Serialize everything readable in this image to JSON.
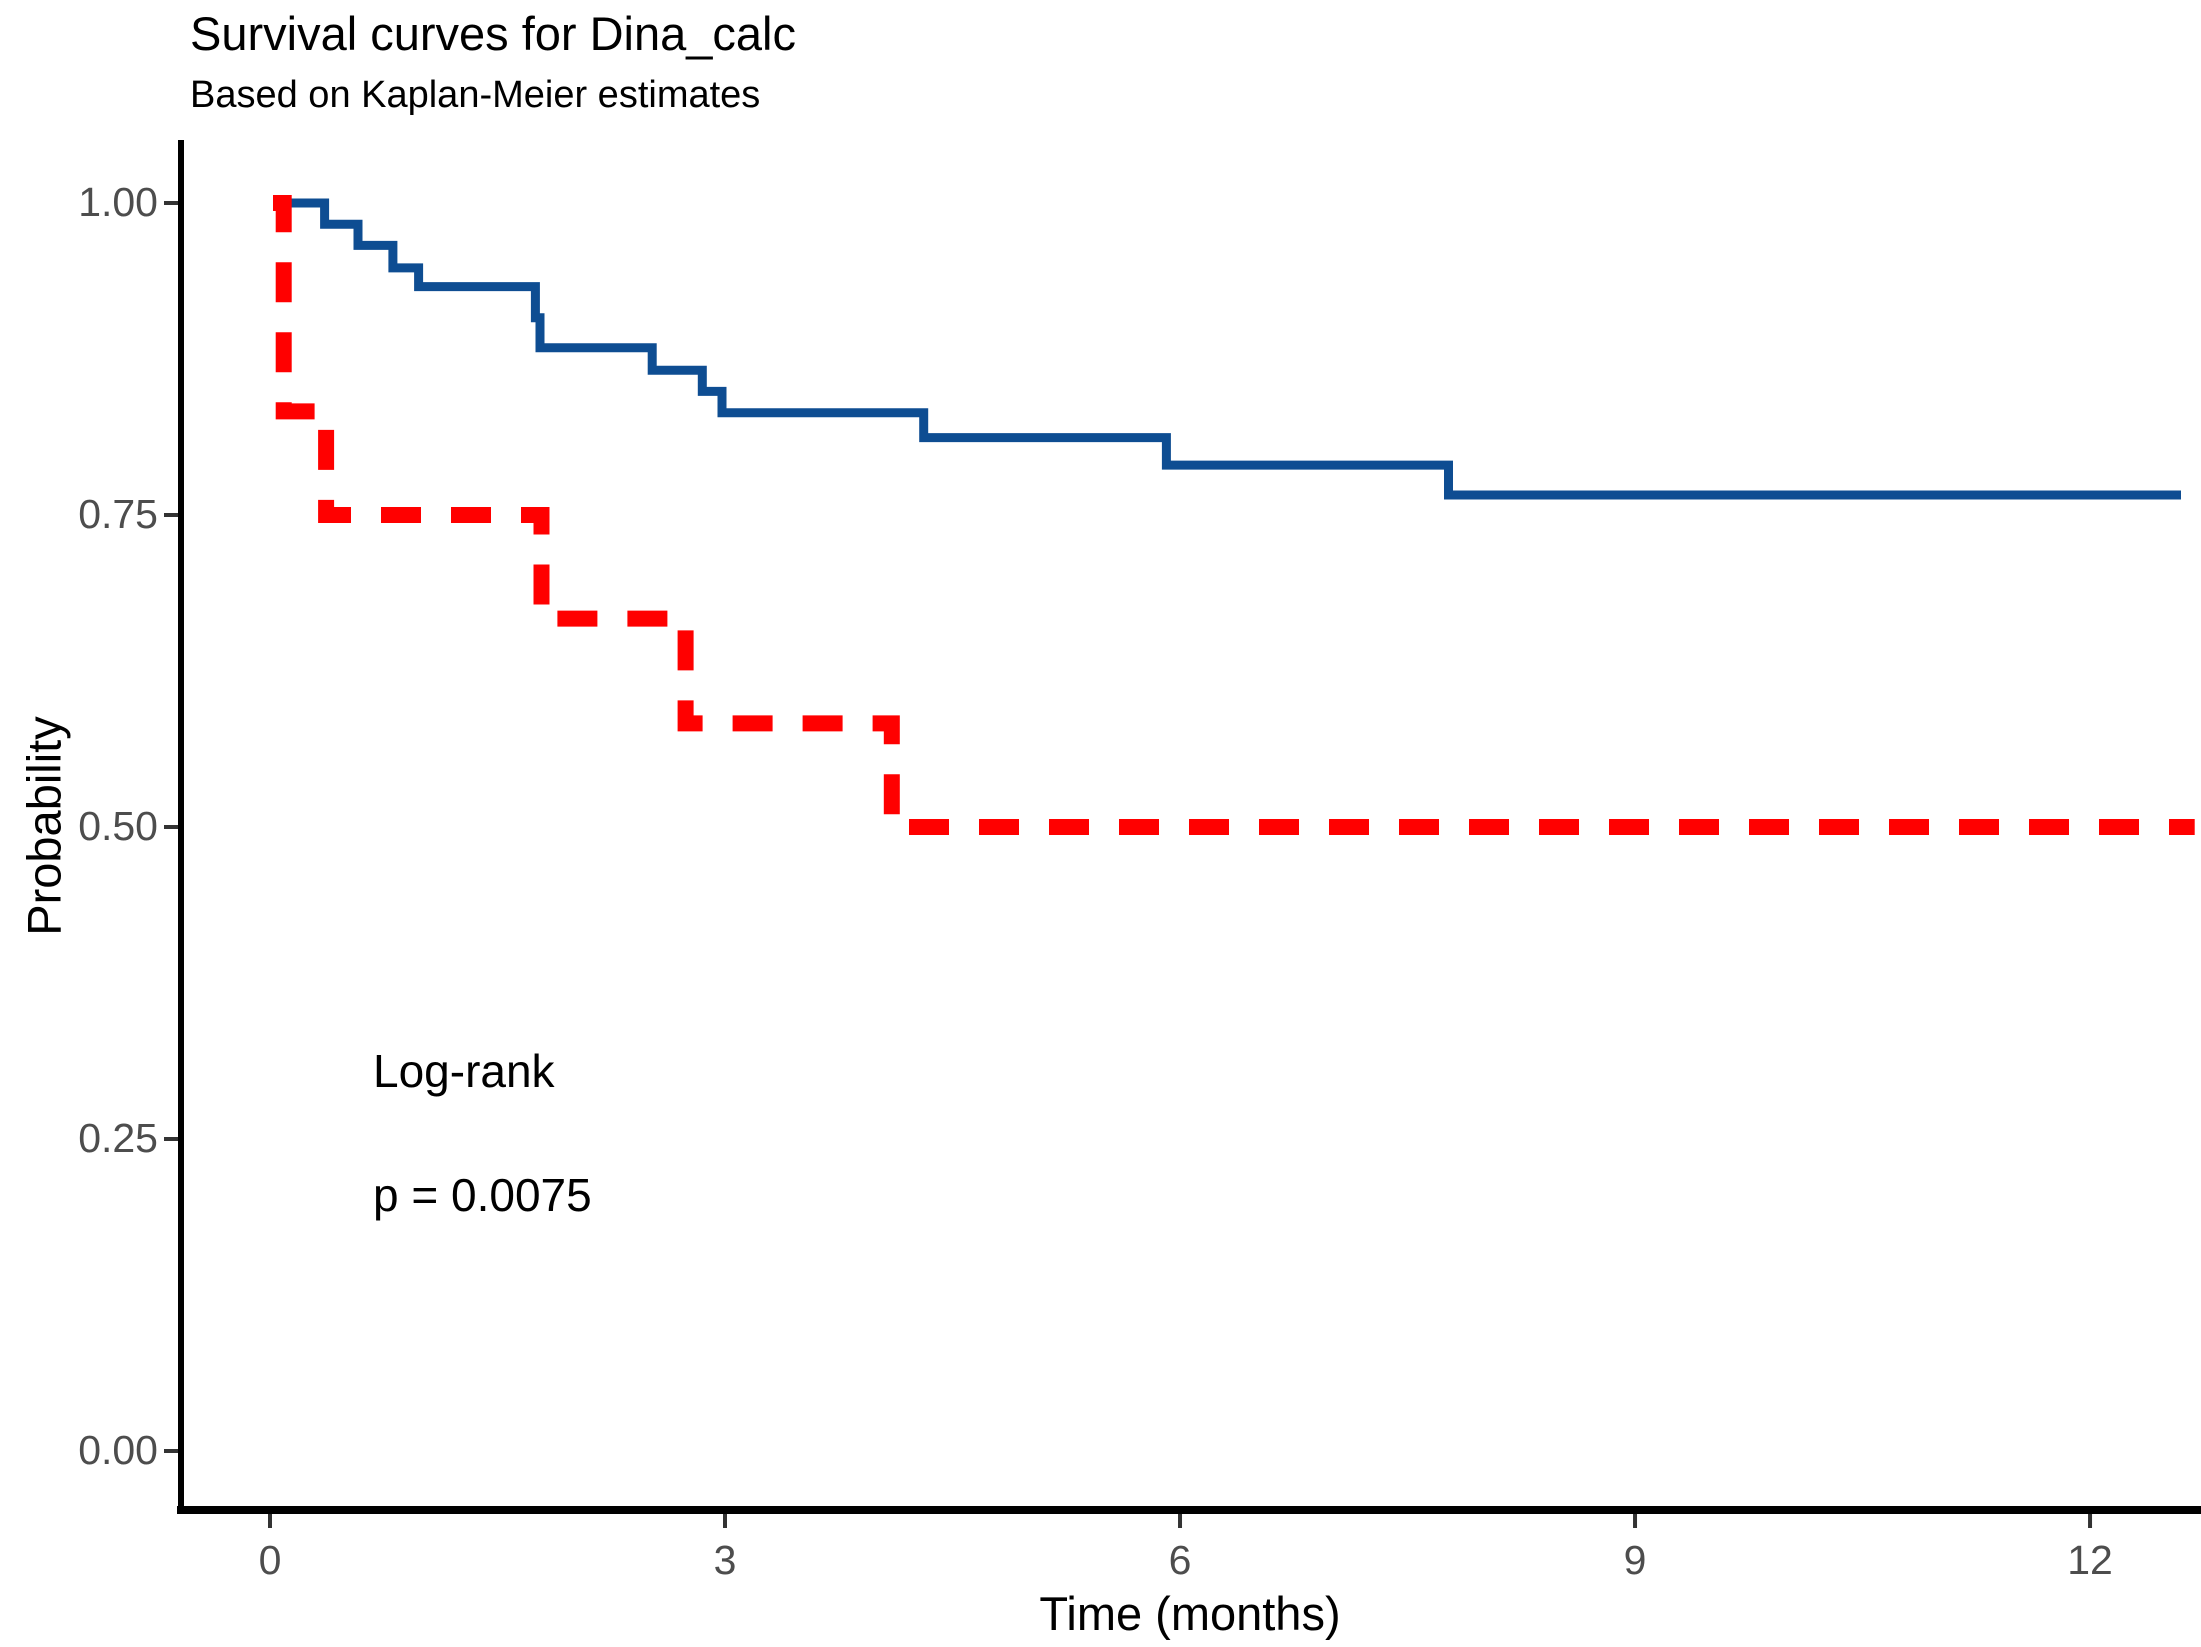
{
  "title": "Survival curves for Dina_calc",
  "subtitle": "Based on Kaplan-Meier estimates",
  "y_axis_label": "Probability",
  "x_axis_label": "Time (months)",
  "annotations": [
    "Log-rank",
    "p = 0.0075"
  ],
  "colors": {
    "series_solid": "#0E4D92",
    "series_dashed": "#FF0000",
    "axis_line": "#000000",
    "tick_mark": "#333333",
    "tick_label": "#4d4d4d"
  },
  "chart_data": {
    "type": "line",
    "subtype": "kaplan-meier-step",
    "title": "Survival curves for Dina_calc",
    "subtitle": "Based on Kaplan-Meier estimates",
    "xlabel": "Time (months)",
    "ylabel": "Probability",
    "xlim": [
      -0.6,
      12.73
    ],
    "ylim": [
      -0.048,
      1.048
    ],
    "grid": "off",
    "legend_position": "none",
    "statistical_test": "Log-rank",
    "p_value": "p = 0.0075",
    "x_ticks": {
      "values": [
        0,
        3,
        6,
        9,
        12
      ],
      "labels": [
        "0",
        "3",
        "6",
        "9",
        "12"
      ]
    },
    "y_ticks": {
      "values": [
        1.0,
        0.75,
        0.5,
        0.25,
        0.0
      ],
      "labels": [
        "1.00",
        "0.75",
        "0.50",
        "0.25",
        "0.00"
      ]
    },
    "series": [
      {
        "name": "group-1-solid-blue",
        "style": "solid",
        "color": "#0E4D92",
        "t_end": 12.6,
        "points": [
          [
            0.11,
            1.0
          ],
          [
            0.36,
            0.983
          ],
          [
            0.58,
            0.966
          ],
          [
            0.81,
            0.948
          ],
          [
            0.98,
            0.933
          ],
          [
            1.75,
            0.908
          ],
          [
            1.78,
            0.884
          ],
          [
            2.52,
            0.866
          ],
          [
            2.85,
            0.849
          ],
          [
            2.98,
            0.832
          ],
          [
            4.31,
            0.812
          ],
          [
            5.91,
            0.79
          ],
          [
            7.77,
            0.766
          ]
        ]
      },
      {
        "name": "group-2-dashed-red",
        "style": "dashed",
        "color": "#FF0000",
        "t_end": 12.69,
        "points": [
          [
            0.02,
            1.0
          ],
          [
            0.09,
            0.833
          ],
          [
            0.37,
            0.75
          ],
          [
            1.79,
            0.667
          ],
          [
            2.74,
            0.583
          ],
          [
            4.1,
            0.5
          ]
        ]
      }
    ]
  }
}
